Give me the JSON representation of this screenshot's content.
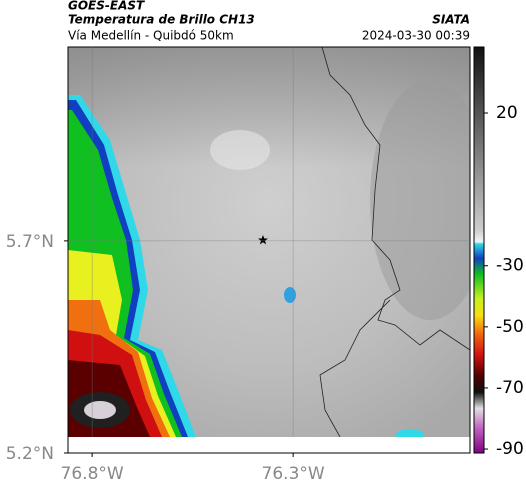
{
  "header": {
    "source": "GOES-EAST",
    "title": "Temperatura de Brillo CH13",
    "subtitle": "Vía Medellín - Quibdó 50km",
    "agency": "SIATA",
    "datetime": "2024-03-30 00:39"
  },
  "map": {
    "xlim": [
      -76.86,
      -75.86
    ],
    "ylim": [
      5.2,
      6.157
    ],
    "xticks": [
      {
        "value": -76.8,
        "label": "76.8°W"
      },
      {
        "value": -76.3,
        "label": "76.3°W"
      }
    ],
    "yticks": [
      {
        "value": 5.2,
        "label": "5.2°N"
      },
      {
        "value": 5.7,
        "label": "5.7°N"
      }
    ],
    "grid": true
  },
  "colorbar": {
    "clim": [
      -91.3,
      41.6
    ],
    "ticks": [
      20,
      -30,
      -50,
      -70,
      -90
    ]
  }
}
